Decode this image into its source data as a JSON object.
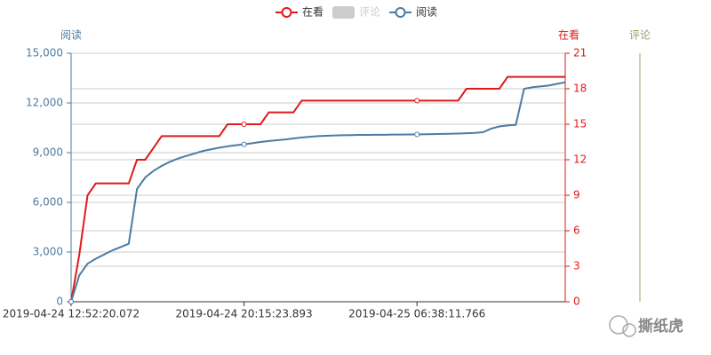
{
  "chart_data": {
    "type": "line",
    "y_label": "阅读",
    "y2_label": "在看",
    "y3_label": "评论",
    "y_color": "#4d7ba3",
    "y2_color": "#e01a1a",
    "y3_color": "#91a56b",
    "categories": [
      "2019-04-24 12:52:20.072",
      null,
      null,
      null,
      null,
      null,
      null,
      null,
      null,
      null,
      null,
      null,
      null,
      null,
      null,
      null,
      null,
      null,
      null,
      null,
      null,
      "2019-04-24 20:15:23.893",
      null,
      null,
      null,
      null,
      null,
      null,
      null,
      null,
      null,
      null,
      null,
      null,
      null,
      null,
      null,
      null,
      null,
      null,
      null,
      null,
      "2019-04-25 06:38:11.766",
      null,
      null,
      null,
      null,
      null,
      null,
      null,
      null,
      null,
      null,
      null,
      null,
      null,
      null,
      null,
      null,
      null,
      null
    ],
    "series": [
      {
        "name": "在看",
        "color": "#e01a1a",
        "axis": "y2",
        "values": [
          0,
          4,
          9,
          10,
          10,
          10,
          10,
          10,
          12,
          12,
          13,
          14,
          14,
          14,
          14,
          14,
          14,
          14,
          14,
          15,
          15,
          15,
          15,
          15,
          16,
          16,
          16,
          16,
          17,
          17,
          17,
          17,
          17,
          17,
          17,
          17,
          17,
          17,
          17,
          17,
          17,
          17,
          17,
          17,
          17,
          17,
          17,
          17,
          18,
          18,
          18,
          18,
          18,
          19,
          19,
          19,
          19,
          19,
          19,
          19,
          19
        ]
      },
      {
        "name": "评论",
        "color": "#c8c8c8",
        "axis": "y3",
        "hidden": true,
        "values": [
          null,
          null,
          null,
          null,
          null,
          null,
          null,
          null,
          null,
          null,
          null,
          null,
          null,
          null,
          null,
          null,
          null,
          null,
          null,
          null,
          null,
          null,
          null,
          null,
          null,
          null,
          null,
          null,
          null,
          null,
          null,
          null,
          null,
          null,
          null,
          null,
          null,
          null,
          null,
          null,
          null,
          null,
          null,
          null,
          null,
          null,
          null,
          null,
          null,
          null,
          null,
          null,
          null,
          null,
          null,
          null,
          null,
          null,
          null,
          null,
          null
        ]
      },
      {
        "name": "阅读",
        "color": "#4d7ba3",
        "axis": "y",
        "values": [
          0,
          1600,
          2300,
          2600,
          2850,
          3100,
          3300,
          3500,
          6800,
          7500,
          7900,
          8200,
          8450,
          8650,
          8800,
          8950,
          9100,
          9200,
          9300,
          9380,
          9450,
          9500,
          9570,
          9640,
          9700,
          9750,
          9800,
          9860,
          9920,
          9960,
          10000,
          10020,
          10040,
          10050,
          10060,
          10070,
          10070,
          10080,
          10080,
          10090,
          10090,
          10100,
          10100,
          10110,
          10120,
          10130,
          10140,
          10150,
          10170,
          10190,
          10230,
          10450,
          10580,
          10640,
          10680,
          12850,
          12950,
          13000,
          13050,
          13150,
          13250
        ]
      }
    ],
    "ylim": [
      0,
      15000
    ],
    "yticks": [
      0,
      {
        "value": 3000,
        "label": "3,000"
      },
      {
        "value": 6000,
        "label": "6,000"
      },
      {
        "value": 9000,
        "label": "9,000"
      },
      {
        "value": 12000,
        "label": "12,000"
      },
      {
        "value": 15000,
        "label": "15,000"
      }
    ],
    "y2lim": [
      0,
      21
    ],
    "y2ticks": [
      0,
      3,
      6,
      9,
      12,
      15,
      18,
      21
    ],
    "grid": true,
    "legend": "top",
    "watermark": "撕纸虎"
  }
}
